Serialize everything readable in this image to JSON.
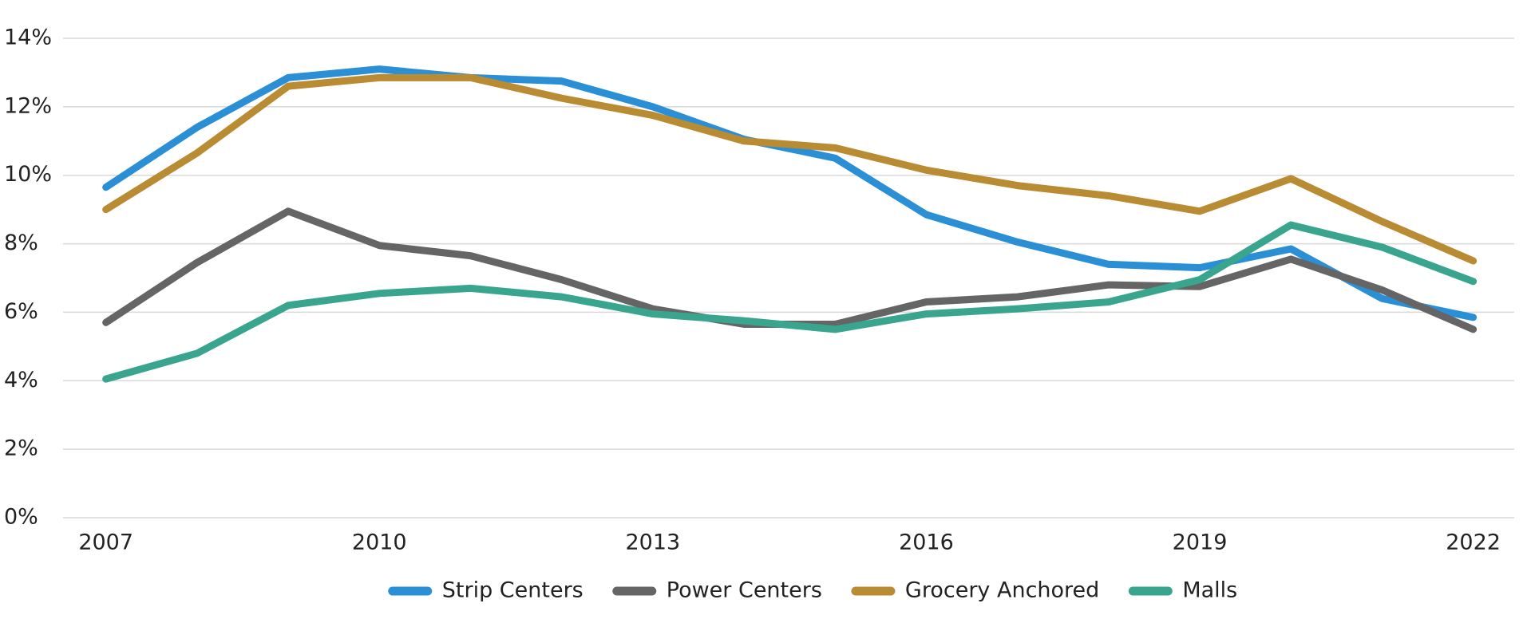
{
  "chart_data": {
    "type": "line",
    "x": [
      2007,
      2008,
      2009,
      2010,
      2011,
      2012,
      2013,
      2014,
      2015,
      2016,
      2017,
      2018,
      2019,
      2020,
      2021,
      2022
    ],
    "series": [
      {
        "name": "Strip Centers",
        "color": "#2b8fd6",
        "values": [
          9.65,
          11.4,
          12.85,
          13.1,
          12.85,
          12.75,
          12.0,
          11.05,
          10.5,
          8.85,
          8.05,
          7.4,
          7.3,
          7.85,
          6.4,
          5.85
        ]
      },
      {
        "name": "Power Centers",
        "color": "#656565",
        "values": [
          5.7,
          7.45,
          8.95,
          7.95,
          7.65,
          6.95,
          6.1,
          5.65,
          5.65,
          6.3,
          6.45,
          6.8,
          6.75,
          7.55,
          6.65,
          5.5
        ]
      },
      {
        "name": "Grocery Anchored",
        "color": "#b98b33",
        "values": [
          9.0,
          10.65,
          12.6,
          12.85,
          12.85,
          12.25,
          11.75,
          11.0,
          10.8,
          10.15,
          9.7,
          9.4,
          8.95,
          9.9,
          8.65,
          7.5
        ]
      },
      {
        "name": "Malls",
        "color": "#3aa58e",
        "values": [
          4.05,
          4.8,
          6.2,
          6.55,
          6.7,
          6.45,
          5.95,
          5.75,
          5.5,
          5.95,
          6.1,
          6.3,
          6.95,
          8.55,
          7.9,
          6.9
        ]
      }
    ],
    "xlim": [
      2006.53,
      2022.45
    ],
    "xticks": [
      2007,
      2010,
      2013,
      2016,
      2019,
      2022
    ],
    "ylim": [
      0,
      14
    ],
    "yticks": [
      {
        "value": 0,
        "label": "0%"
      },
      {
        "value": 2,
        "label": "2%"
      },
      {
        "value": 4,
        "label": "4%"
      },
      {
        "value": 6,
        "label": "6%"
      },
      {
        "value": 8,
        "label": "8%"
      },
      {
        "value": 10,
        "label": "10%"
      },
      {
        "value": 12,
        "label": "12%"
      },
      {
        "value": 14,
        "label": "14%"
      }
    ],
    "grid": true,
    "legend": "bottom"
  }
}
